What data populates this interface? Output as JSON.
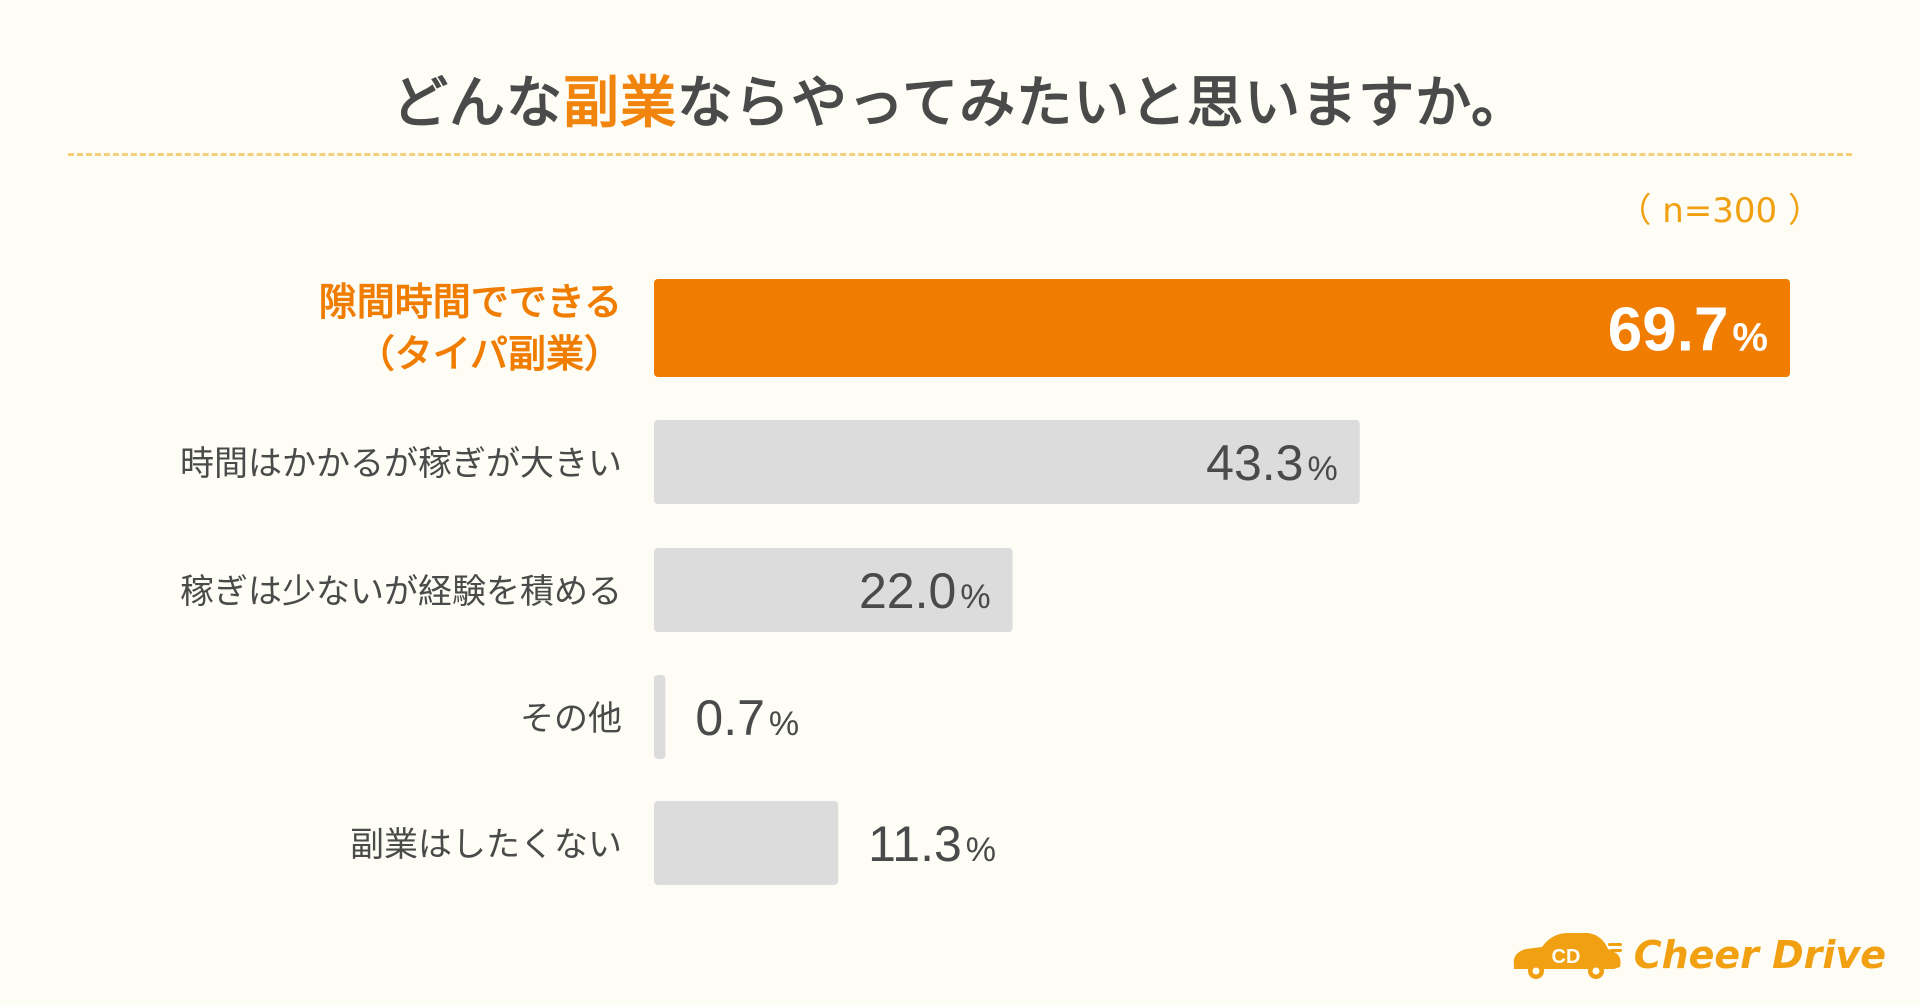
{
  "title": {
    "before": "どんな",
    "highlight": "副業",
    "after": "ならやってみたいと思いますか。"
  },
  "sample_size": "（ n=300 ）",
  "logo": {
    "icon_text": "CD",
    "text": "Cheer Drive"
  },
  "colors": {
    "highlight": "#f07d00",
    "bar_default": "#dcdcdc",
    "label_default": "#4a4a4a",
    "value_on_highlight": "#ffffff",
    "accent_text": "#f0a010"
  },
  "chart_data": {
    "type": "bar",
    "orientation": "horizontal",
    "unit": "%",
    "xlim": [
      0,
      100
    ],
    "grid": false,
    "categories": [
      "隙間時間でできる（タイパ副業）",
      "時間はかかるが稼ぎが大きい",
      "稼ぎは少ないが経験を積める",
      "その他",
      "副業はしたくない"
    ],
    "category_lines": [
      [
        "隙間時間でできる",
        "（タイパ副業）"
      ],
      [
        "時間はかかるが稼ぎが大きい"
      ],
      [
        "稼ぎは少ないが経験を積める"
      ],
      [
        "その他"
      ],
      [
        "副業はしたくない"
      ]
    ],
    "values": [
      69.7,
      43.3,
      22.0,
      0.7,
      11.3
    ],
    "value_labels": [
      "69.7",
      "43.3",
      "22.0",
      "0.7",
      "11.3"
    ],
    "highlighted_index": 0
  }
}
